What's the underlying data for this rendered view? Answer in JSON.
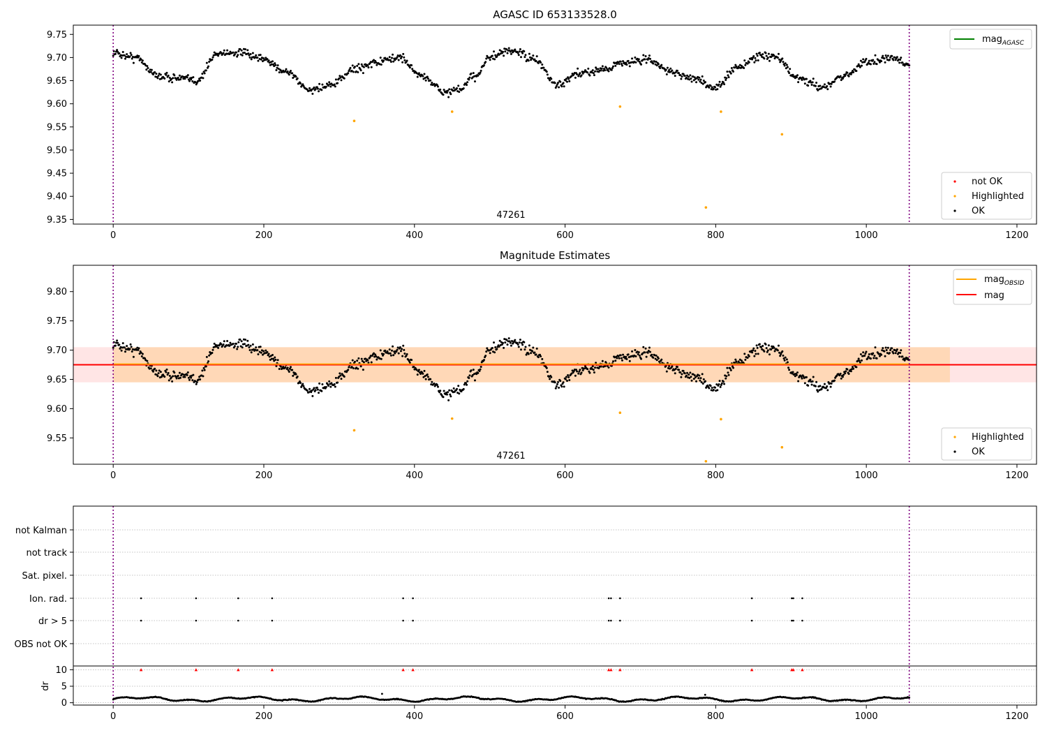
{
  "chart_data": [
    {
      "type": "scatter",
      "title": "AGASC ID 653133528.0",
      "xlim": [
        -53,
        1226
      ],
      "ylim": [
        9.34,
        9.77
      ],
      "xticks": [
        "0",
        "200",
        "400",
        "600",
        "800",
        "1000",
        "1200"
      ],
      "yticks": [
        "9.35",
        "9.40",
        "9.45",
        "9.50",
        "9.55",
        "9.60",
        "9.65",
        "9.70",
        "9.75"
      ],
      "vlines": [
        0,
        1057
      ],
      "annotation": {
        "text": "47261",
        "x": 528
      },
      "line_legend": [
        {
          "name": "mag",
          "subscript": "AGASC",
          "color": "#008000"
        }
      ],
      "legend": [
        {
          "name": "not OK",
          "color": "#ff0000"
        },
        {
          "name": "Highlighted",
          "color": "#ffa500"
        },
        {
          "name": "OK",
          "color": "#000000"
        }
      ],
      "highlighted": [
        [
          320,
          9.563
        ],
        [
          450,
          9.583
        ],
        [
          673,
          9.594
        ],
        [
          807,
          9.583
        ],
        [
          888,
          9.534
        ],
        [
          787,
          9.376
        ]
      ],
      "ok_series": {
        "n_points": 1055,
        "trend_x": [
          0,
          30,
          60,
          90,
          110,
          140,
          170,
          200,
          230,
          260,
          290,
          320,
          350,
          380,
          410,
          440,
          460,
          480,
          500,
          530,
          560,
          590,
          620,
          650,
          680,
          710,
          740,
          770,
          800,
          830,
          860,
          880,
          910,
          940,
          970,
          1000,
          1030,
          1057
        ],
        "trend_y": [
          9.71,
          9.7,
          9.66,
          9.655,
          9.65,
          9.71,
          9.71,
          9.695,
          9.67,
          9.63,
          9.64,
          9.675,
          9.69,
          9.7,
          9.66,
          9.625,
          9.63,
          9.66,
          9.7,
          9.715,
          9.695,
          9.64,
          9.665,
          9.675,
          9.69,
          9.695,
          9.67,
          9.655,
          9.635,
          9.68,
          9.705,
          9.7,
          9.655,
          9.635,
          9.66,
          9.69,
          9.7,
          9.685
        ],
        "scatter": 0.015
      }
    },
    {
      "type": "scatter",
      "title": "Magnitude Estimates",
      "xlim": [
        -53,
        1226
      ],
      "ylim": [
        9.505,
        9.845
      ],
      "xticks": [
        "0",
        "200",
        "400",
        "600",
        "800",
        "1000",
        "1200"
      ],
      "yticks": [
        "9.55",
        "9.60",
        "9.65",
        "9.70",
        "9.75",
        "9.80"
      ],
      "vlines": [
        0,
        1057
      ],
      "annotation": {
        "text": "47261",
        "x": 528
      },
      "line_legend": [
        {
          "name": "mag",
          "subscript": "OBSID",
          "color": "#ffa500"
        },
        {
          "name": "mag",
          "subscript": "",
          "color": "#ff0000"
        }
      ],
      "legend": [
        {
          "name": "Highlighted",
          "color": "#ffa500"
        },
        {
          "name": "OK",
          "color": "#000000"
        }
      ],
      "mag_line": 9.675,
      "band": [
        9.645,
        9.705
      ],
      "band_obsid_x": [
        0,
        1111
      ],
      "highlighted": [
        [
          320,
          9.563
        ],
        [
          450,
          9.583
        ],
        [
          673,
          9.593
        ],
        [
          807,
          9.582
        ],
        [
          888,
          9.534
        ],
        [
          787,
          9.51
        ]
      ],
      "ok_series": "same as panel 1"
    },
    {
      "type": "scatter",
      "title": "",
      "xlim": [
        -53,
        1226
      ],
      "xticks": [
        "0",
        "200",
        "400",
        "600",
        "800",
        "1000",
        "1200"
      ],
      "category_rows": [
        "not Kalman",
        "not track",
        "Sat. pixel.",
        "Ion. rad.",
        "dr > 5",
        "OBS not OK"
      ],
      "flag_x": [
        37,
        110,
        166,
        211,
        385,
        398,
        658,
        661,
        673,
        848,
        901,
        903,
        915
      ],
      "flag_rows": [
        "Ion. rad.",
        "dr > 5"
      ],
      "dr": {
        "ylabel": "dr",
        "yticks": [
          "0",
          "5",
          "10"
        ],
        "ylim": [
          -0.5,
          10.5
        ],
        "red_markers_at": 10,
        "typical_range": [
          0.2,
          2.4
        ],
        "outliers": [
          [
            357,
            2.7
          ],
          [
            786,
            2.4
          ]
        ]
      }
    }
  ]
}
